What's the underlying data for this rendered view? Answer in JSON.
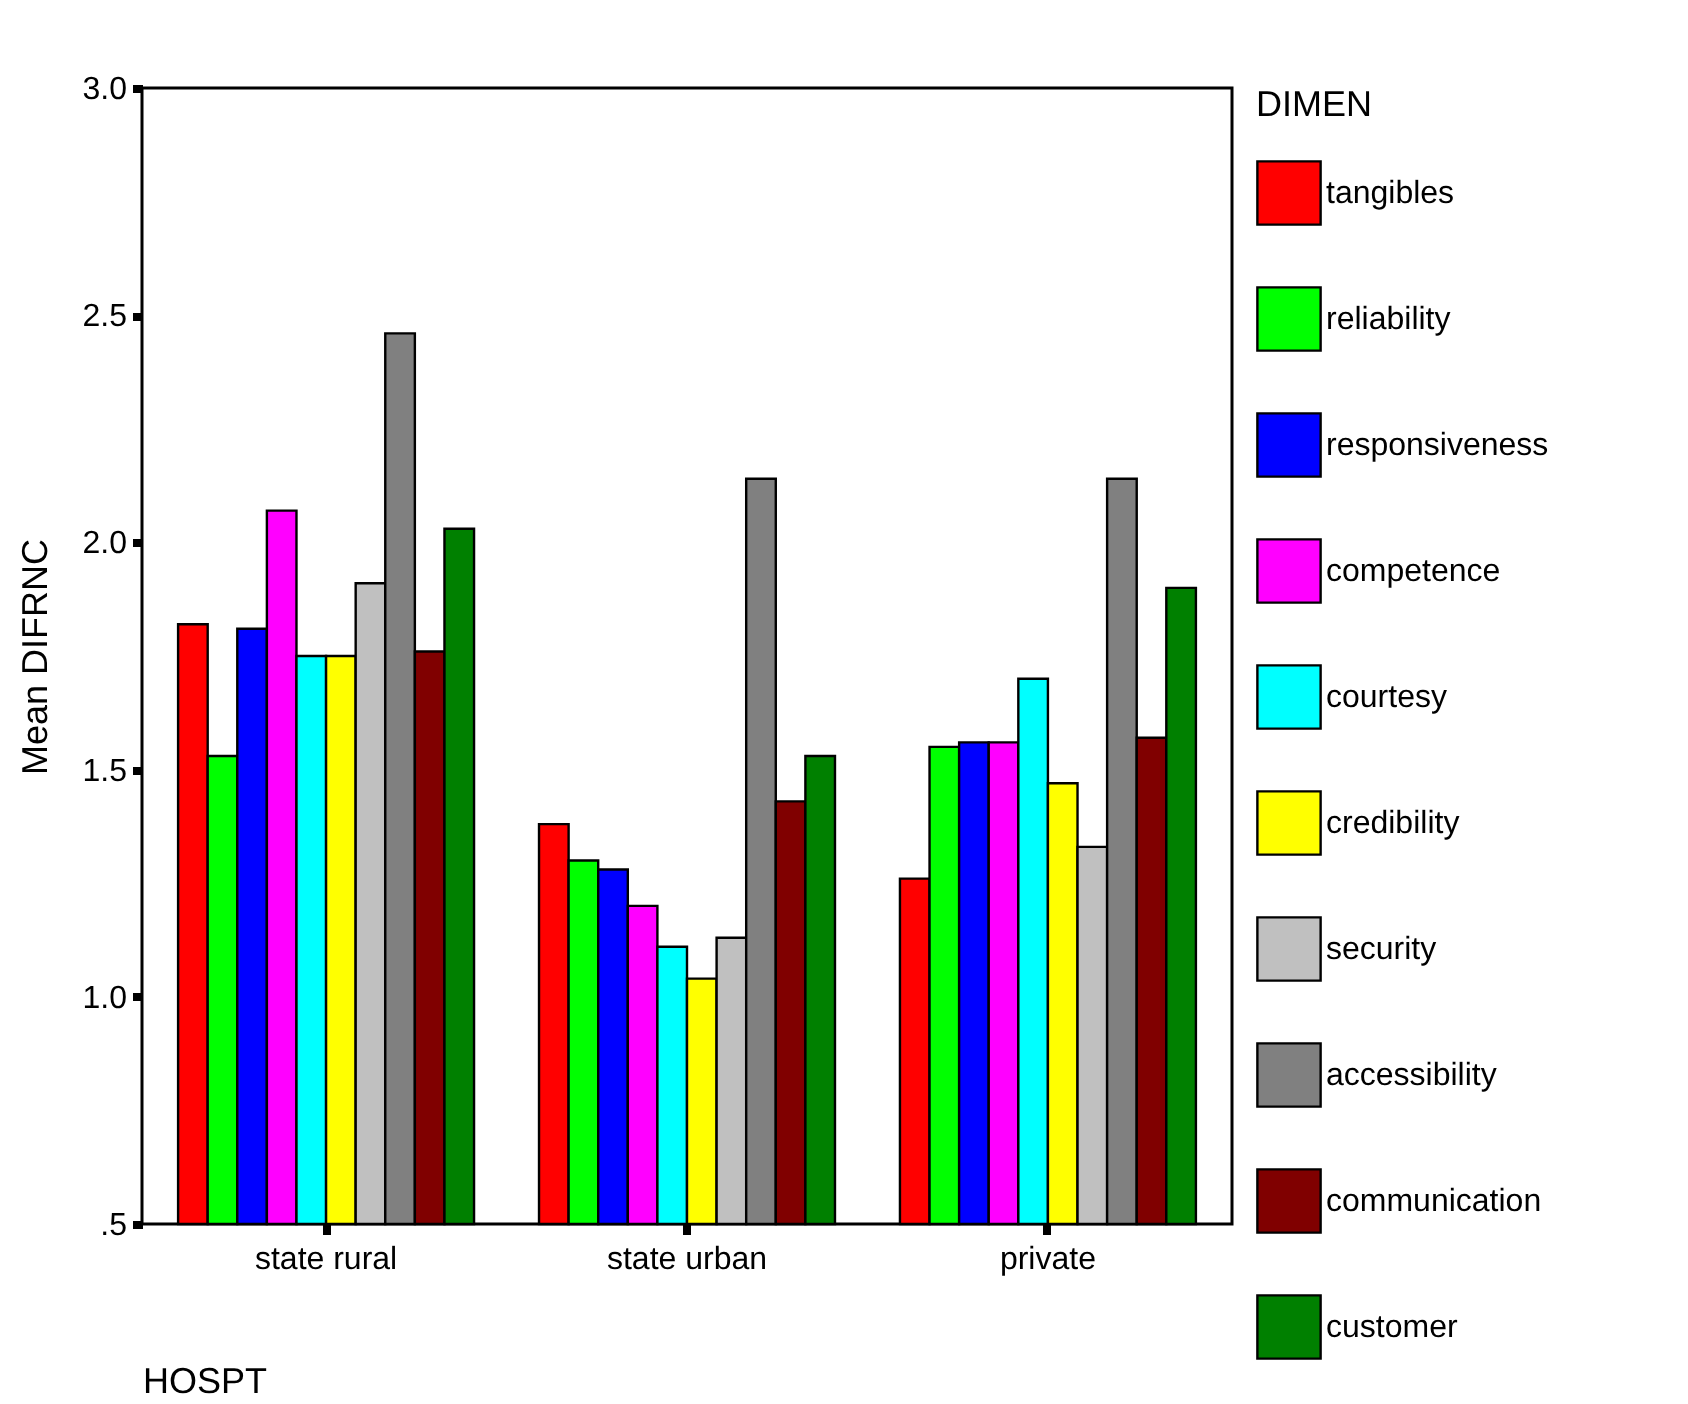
{
  "chart_data": {
    "type": "bar",
    "xlabel": "HOSPT",
    "ylabel": "Mean DIFRNC",
    "legend_title": "DIMEN",
    "categories": [
      "state rural",
      "state urban",
      "private"
    ],
    "ylim": [
      0.5,
      3.0
    ],
    "yticks": [
      {
        "value": 0.5,
        "label": ".5"
      },
      {
        "value": 1.0,
        "label": "1.0"
      },
      {
        "value": 1.5,
        "label": "1.5"
      },
      {
        "value": 2.0,
        "label": "2.0"
      },
      {
        "value": 2.5,
        "label": "2.5"
      },
      {
        "value": 3.0,
        "label": "3.0"
      }
    ],
    "grid": false,
    "legend": "right",
    "series": [
      {
        "name": "tangibles",
        "color": "#ff0000",
        "values": [
          1.82,
          1.38,
          1.26
        ]
      },
      {
        "name": "reliability",
        "color": "#00ff00",
        "values": [
          1.53,
          1.3,
          1.55
        ]
      },
      {
        "name": "responsiveness",
        "color": "#0000ff",
        "values": [
          1.81,
          1.28,
          1.56
        ]
      },
      {
        "name": "competence",
        "color": "#ff00ff",
        "values": [
          2.07,
          1.2,
          1.56
        ]
      },
      {
        "name": "courtesy",
        "color": "#00ffff",
        "values": [
          1.75,
          1.11,
          1.7
        ]
      },
      {
        "name": "credibility",
        "color": "#ffff00",
        "values": [
          1.75,
          1.04,
          1.47
        ]
      },
      {
        "name": "security",
        "color": "#c0c0c0",
        "values": [
          1.91,
          1.13,
          1.33
        ]
      },
      {
        "name": "accessibility",
        "color": "#808080",
        "values": [
          2.46,
          2.14,
          2.14
        ]
      },
      {
        "name": "communication",
        "color": "#800000",
        "values": [
          1.76,
          1.43,
          1.57
        ]
      },
      {
        "name": "customer",
        "color": "#008000",
        "values": [
          2.03,
          1.53,
          1.9
        ]
      }
    ]
  }
}
